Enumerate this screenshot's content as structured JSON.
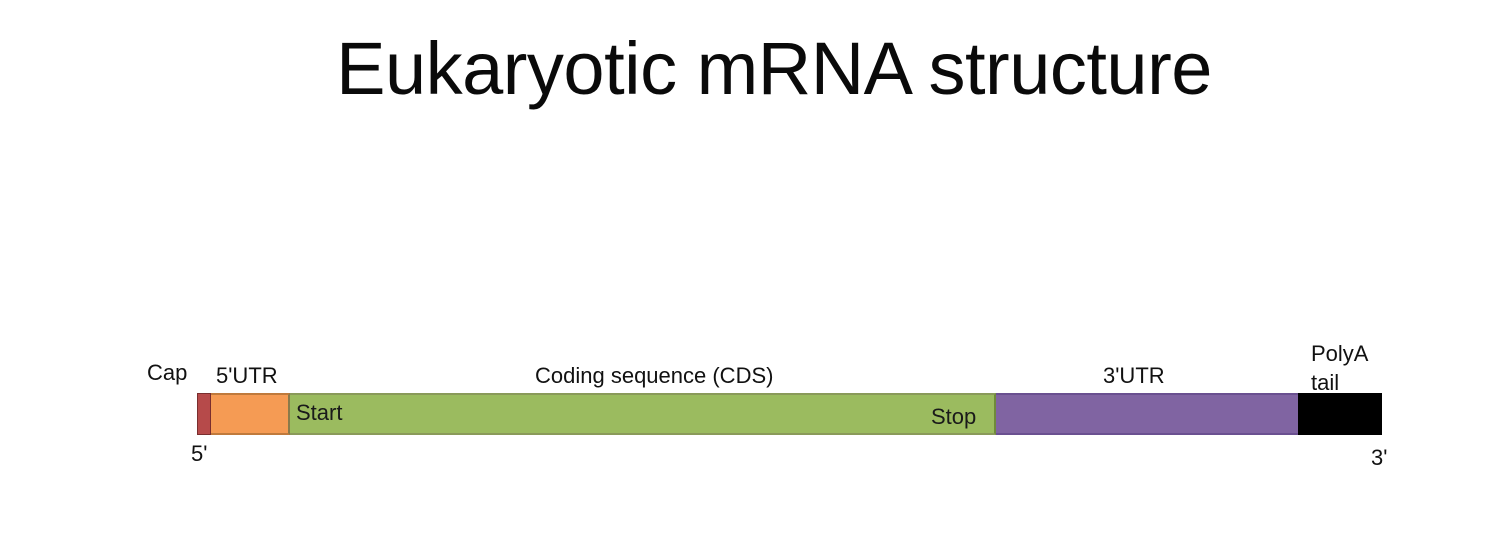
{
  "title": "Eukaryotic mRNA structure",
  "labels": {
    "cap": "Cap",
    "utr5": "5'UTR",
    "cds": "Coding sequence (CDS)",
    "utr3": "3'UTR",
    "polya_line1": "PolyA",
    "polya_line2": "tail",
    "start": "Start",
    "stop": "Stop",
    "end5": "5'",
    "end3": "3'"
  },
  "colors": {
    "cap": "#b64a4a",
    "utr5": "#f59b54",
    "cds": "#9bbb5f",
    "utr3": "#8064a2",
    "polya": "#000000"
  }
}
